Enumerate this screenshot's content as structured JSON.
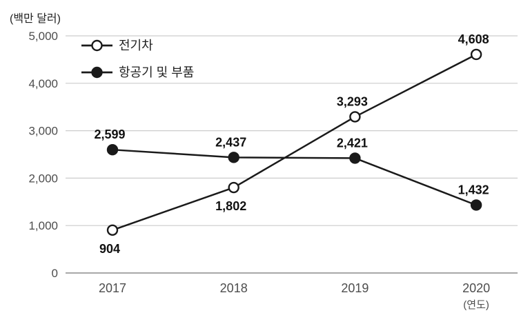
{
  "chart_data": {
    "type": "line",
    "title": "",
    "unit_label": "(백만 달러)",
    "x_axis_label": "(연도)",
    "categories": [
      "2017",
      "2018",
      "2019",
      "2020"
    ],
    "series": [
      {
        "name": "전기차",
        "marker": "open-circle",
        "values": [
          904,
          1802,
          3293,
          4608
        ],
        "value_labels": [
          "904",
          "1,802",
          "3,293",
          "4,608"
        ],
        "label_positions": [
          "below",
          "below",
          "above",
          "above"
        ]
      },
      {
        "name": "항공기 및 부품",
        "marker": "filled-circle",
        "values": [
          2599,
          2437,
          2421,
          1432
        ],
        "value_labels": [
          "2,599",
          "2,437",
          "2,421",
          "1,432"
        ],
        "label_positions": [
          "above",
          "above",
          "above",
          "above"
        ]
      }
    ],
    "ylim": [
      0,
      5000
    ],
    "y_ticks": [
      0,
      1000,
      2000,
      3000,
      4000,
      5000
    ],
    "y_tick_labels": [
      "0",
      "1,000",
      "2,000",
      "3,000",
      "4,000",
      "5,000"
    ],
    "grid": "horizontal",
    "legend_position": "top-left-inside",
    "colors": {
      "line": "#1a1a1a",
      "grid": "#cccccc",
      "axis": "#8c8c8c",
      "tick_text": "#4d4d4d",
      "value_label_text": "#111111",
      "legend_text": "#222222",
      "background": "#ffffff"
    }
  }
}
